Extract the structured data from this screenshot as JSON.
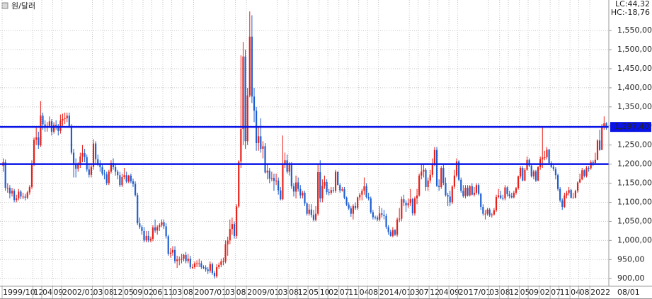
{
  "chart_data": {
    "type": "candlestick",
    "title": "원/달러",
    "lc_label": "LC:44,32",
    "hc_label": "HC:-18,76",
    "x_end_label": "08/01",
    "up_color": "#e8201a",
    "down_color": "#1e5fd0",
    "hline_color": "#0a14e6",
    "lc_color": "#e8201a",
    "hc_color": "#1e5fd0",
    "grid": true,
    "ylim": [
      880,
      1630
    ],
    "yticks": [
      {
        "value": 900,
        "label": "900,00"
      },
      {
        "value": 950,
        "label": "950,00"
      },
      {
        "value": 1000,
        "label": "1,000,00"
      },
      {
        "value": 1050,
        "label": "1,050,00"
      },
      {
        "value": 1100,
        "label": "1,100,00"
      },
      {
        "value": 1150,
        "label": "1,150,00"
      },
      {
        "value": 1200,
        "label": "1,200,00"
      },
      {
        "value": 1250,
        "label": "1,250,00"
      },
      {
        "value": 1300,
        "label": "1,300,00"
      },
      {
        "value": 1350,
        "label": "1,350,00"
      },
      {
        "value": 1400,
        "label": "1,400,00"
      },
      {
        "value": 1450,
        "label": "1,450,00"
      },
      {
        "value": 1500,
        "label": "1,500,00"
      },
      {
        "value": 1550,
        "label": "1,550,00"
      }
    ],
    "hlines": [
      1297.4,
      1200
    ],
    "hline_labels": [
      "1,297,40",
      null
    ],
    "categories": [
      "1999/10",
      null,
      null,
      null,
      null,
      null,
      null,
      null,
      null,
      null,
      null,
      null,
      null,
      null,
      "12",
      null,
      null,
      null,
      "04",
      null,
      null,
      null,
      null,
      "09",
      null,
      null,
      null,
      "2002/01",
      null,
      null,
      null,
      null,
      null,
      null,
      null,
      null,
      null,
      null,
      null,
      null,
      null,
      "03",
      null,
      null,
      null,
      null,
      "08",
      null,
      null,
      null,
      "12",
      null,
      null,
      null,
      null,
      "05",
      null,
      null,
      null,
      "09",
      null,
      null,
      null,
      null,
      "02",
      null,
      null,
      null,
      "06",
      null,
      null,
      null,
      null,
      "11",
      null,
      null,
      null,
      "03",
      null,
      null,
      null,
      null,
      "08",
      null,
      null,
      null,
      null,
      "2007/01",
      null,
      null,
      null,
      null,
      null,
      null,
      null,
      null,
      null,
      null,
      null,
      null,
      null,
      "03",
      null,
      null,
      null,
      null,
      "08",
      null,
      null,
      null,
      null,
      "2009/01",
      null,
      null,
      null,
      null,
      null,
      null,
      null,
      null,
      null,
      null,
      null,
      null,
      null,
      "03",
      null,
      null,
      null,
      null,
      "08",
      null,
      null,
      null,
      "12",
      null,
      null,
      null,
      null,
      "05",
      null,
      null,
      null,
      null,
      "10",
      null,
      null,
      null,
      "02",
      null,
      null,
      null,
      null,
      "07",
      null,
      null,
      null,
      "11",
      null,
      null,
      null,
      null,
      "04",
      null,
      null,
      null,
      "08",
      null,
      null,
      null,
      null,
      "2014/01",
      null,
      null,
      null,
      null,
      null,
      null,
      null,
      null,
      null,
      null,
      null,
      null,
      null,
      "03",
      null,
      null,
      null,
      "07",
      null,
      null,
      null,
      null,
      "12",
      null,
      null,
      null,
      "04",
      null,
      null,
      null,
      null,
      "09",
      null,
      null,
      null,
      "2017/01",
      null,
      null,
      null,
      null,
      null,
      null,
      null,
      null,
      null,
      null,
      null,
      null,
      null,
      "03",
      null,
      null,
      null,
      null,
      "08",
      null,
      null,
      null,
      "12",
      null,
      null,
      null,
      null,
      "05",
      null,
      null,
      null,
      "09",
      null,
      null,
      null,
      null,
      "02",
      null,
      null,
      null,
      null,
      "07",
      null,
      null,
      null,
      "11",
      null,
      null,
      null,
      null,
      "04",
      null,
      null,
      null,
      "08",
      null,
      null,
      null,
      null,
      "2022",
      null,
      null,
      null,
      null,
      null,
      null,
      null
    ],
    "open": [
      1195,
      1205,
      1138,
      1138,
      1123,
      1130,
      1106,
      1110,
      1128,
      1115,
      1115,
      1112,
      1126,
      1140,
      1200,
      1264,
      1270,
      1249,
      1327,
      1304,
      1296,
      1300,
      1312,
      1285,
      1303,
      1300,
      1287,
      1314,
      1318,
      1320,
      1327,
      1300,
      1230,
      1200,
      1188,
      1198,
      1220,
      1229,
      1218,
      1186,
      1172,
      1193,
      1254,
      1213,
      1202,
      1192,
      1175,
      1173,
      1150,
      1180,
      1203,
      1192,
      1180,
      1171,
      1145,
      1166,
      1171,
      1154,
      1170,
      1155,
      1148,
      1119,
      1045,
      1035,
      1025,
      1000,
      1012,
      1000,
      1004,
      1034,
      1026,
      1035,
      1040,
      1048,
      1037,
      1011,
      965,
      968,
      975,
      946,
      950,
      950,
      952,
      962,
      946,
      952,
      930,
      930,
      940,
      940,
      940,
      930,
      929,
      924,
      920,
      938,
      915,
      906,
      930,
      936,
      945,
      945,
      990,
      1000,
      1030,
      1043,
      1012,
      1089,
      1207,
      1292,
      1482,
      1260,
      1380,
      1534,
      1377,
      1340,
      1255,
      1273,
      1240,
      1247,
      1178,
      1183,
      1162,
      1164,
      1156,
      1157,
      1131,
      1108,
      1198,
      1210,
      1180,
      1198,
      1142,
      1128,
      1152,
      1135,
      1118,
      1125,
      1097,
      1070,
      1081,
      1067,
      1054,
      1070,
      1179,
      1110,
      1143,
      1153,
      1127,
      1125,
      1132,
      1130,
      1180,
      1145,
      1131,
      1134,
      1112,
      1094,
      1084,
      1070,
      1090,
      1085,
      1113,
      1120,
      1130,
      1142,
      1114,
      1110,
      1074,
      1061,
      1060,
      1055,
      1071,
      1067,
      1064,
      1035,
      1022,
      1012,
      1027,
      1015,
      1055,
      1057,
      1108,
      1099,
      1092,
      1098,
      1108,
      1071,
      1110,
      1118,
      1170,
      1180,
      1185,
      1140,
      1157,
      1172,
      1200,
      1237,
      1143,
      1140,
      1190,
      1151,
      1119,
      1115,
      1100,
      1141,
      1170,
      1207,
      1159,
      1130,
      1116,
      1138,
      1118,
      1142,
      1120,
      1125,
      1145,
      1122,
      1088,
      1070,
      1070,
      1081,
      1066,
      1068,
      1079,
      1114,
      1118,
      1111,
      1110,
      1139,
      1121,
      1116,
      1113,
      1125,
      1137,
      1168,
      1190,
      1157,
      1185,
      1211,
      1196,
      1168,
      1181,
      1157,
      1192,
      1213,
      1217,
      1218,
      1238,
      1203,
      1193,
      1187,
      1171,
      1135,
      1105,
      1088,
      1118,
      1124,
      1132,
      1112,
      1112,
      1130,
      1152,
      1160,
      1184,
      1169,
      1190,
      1189,
      1205,
      1203,
      1211,
      1262,
      1237,
      1298,
      1307
    ],
    "high": [
      1215,
      1212,
      1150,
      1145,
      1138,
      1135,
      1120,
      1135,
      1132,
      1125,
      1122,
      1130,
      1145,
      1210,
      1270,
      1295,
      1285,
      1365,
      1335,
      1315,
      1310,
      1325,
      1318,
      1310,
      1315,
      1305,
      1330,
      1332,
      1335,
      1335,
      1335,
      1305,
      1240,
      1215,
      1205,
      1230,
      1250,
      1240,
      1225,
      1200,
      1200,
      1265,
      1260,
      1225,
      1210,
      1200,
      1185,
      1180,
      1185,
      1210,
      1215,
      1200,
      1185,
      1180,
      1175,
      1190,
      1180,
      1172,
      1175,
      1162,
      1155,
      1125,
      1060,
      1040,
      1035,
      1025,
      1025,
      1010,
      1040,
      1055,
      1040,
      1045,
      1055,
      1055,
      1045,
      1015,
      980,
      985,
      985,
      960,
      958,
      965,
      965,
      970,
      965,
      960,
      938,
      945,
      948,
      952,
      947,
      935,
      935,
      930,
      945,
      942,
      920,
      938,
      942,
      952,
      955,
      1000,
      1010,
      1055,
      1060,
      1050,
      1095,
      1210,
      1485,
      1520,
      1500,
      1400,
      1600,
      1590,
      1400,
      1350,
      1300,
      1320,
      1260,
      1255,
      1200,
      1190,
      1180,
      1175,
      1175,
      1165,
      1140,
      1275,
      1230,
      1225,
      1205,
      1205,
      1150,
      1170,
      1165,
      1145,
      1130,
      1130,
      1100,
      1095,
      1095,
      1080,
      1090,
      1200,
      1210,
      1160,
      1170,
      1160,
      1135,
      1140,
      1140,
      1185,
      1180,
      1150,
      1140,
      1140,
      1115,
      1100,
      1090,
      1095,
      1100,
      1115,
      1125,
      1135,
      1165,
      1150,
      1125,
      1115,
      1080,
      1065,
      1065,
      1090,
      1085,
      1080,
      1070,
      1040,
      1028,
      1035,
      1030,
      1060,
      1085,
      1115,
      1120,
      1105,
      1110,
      1135,
      1112,
      1115,
      1135,
      1175,
      1200,
      1200,
      1190,
      1165,
      1185,
      1215,
      1245,
      1245,
      1160,
      1195,
      1200,
      1165,
      1125,
      1130,
      1145,
      1185,
      1215,
      1210,
      1165,
      1145,
      1145,
      1145,
      1145,
      1150,
      1140,
      1150,
      1150,
      1125,
      1095,
      1080,
      1085,
      1085,
      1072,
      1085,
      1120,
      1135,
      1130,
      1120,
      1145,
      1142,
      1130,
      1125,
      1130,
      1140,
      1170,
      1195,
      1195,
      1190,
      1220,
      1215,
      1200,
      1185,
      1185,
      1195,
      1220,
      1296,
      1235,
      1245,
      1240,
      1208,
      1198,
      1192,
      1175,
      1140,
      1110,
      1125,
      1130,
      1140,
      1135,
      1125,
      1133,
      1155,
      1175,
      1190,
      1186,
      1195,
      1195,
      1210,
      1210,
      1230,
      1265,
      1290,
      1305,
      1325,
      1310
    ],
    "low": [
      1180,
      1130,
      1125,
      1110,
      1115,
      1100,
      1100,
      1105,
      1108,
      1108,
      1105,
      1108,
      1120,
      1135,
      1195,
      1250,
      1240,
      1245,
      1290,
      1285,
      1285,
      1295,
      1275,
      1280,
      1290,
      1275,
      1280,
      1300,
      1305,
      1310,
      1295,
      1225,
      1165,
      1165,
      1180,
      1190,
      1205,
      1205,
      1180,
      1165,
      1165,
      1185,
      1200,
      1195,
      1180,
      1170,
      1160,
      1145,
      1145,
      1175,
      1185,
      1170,
      1160,
      1140,
      1140,
      1160,
      1150,
      1150,
      1150,
      1140,
      1115,
      1040,
      1030,
      1015,
      995,
      995,
      995,
      995,
      998,
      1020,
      1015,
      1025,
      1035,
      1030,
      1005,
      960,
      955,
      960,
      940,
      928,
      935,
      940,
      945,
      940,
      940,
      925,
      925,
      925,
      930,
      930,
      925,
      925,
      918,
      912,
      915,
      910,
      900,
      902,
      925,
      930,
      935,
      940,
      960,
      990,
      1015,
      1005,
      1005,
      1085,
      1190,
      1250,
      1240,
      1250,
      1375,
      1360,
      1310,
      1235,
      1235,
      1230,
      1215,
      1175,
      1160,
      1150,
      1155,
      1130,
      1145,
      1120,
      1105,
      1105,
      1190,
      1175,
      1170,
      1135,
      1115,
      1110,
      1128,
      1110,
      1110,
      1090,
      1065,
      1065,
      1060,
      1050,
      1050,
      1065,
      1100,
      1100,
      1135,
      1120,
      1118,
      1120,
      1125,
      1125,
      1145,
      1125,
      1128,
      1108,
      1090,
      1080,
      1062,
      1055,
      1080,
      1080,
      1105,
      1105,
      1120,
      1110,
      1105,
      1070,
      1055,
      1055,
      1050,
      1050,
      1060,
      1055,
      1030,
      1015,
      1010,
      1008,
      1012,
      1010,
      1048,
      1050,
      1090,
      1075,
      1085,
      1090,
      1065,
      1065,
      1095,
      1115,
      1160,
      1165,
      1130,
      1130,
      1150,
      1165,
      1195,
      1140,
      1130,
      1135,
      1145,
      1115,
      1090,
      1090,
      1095,
      1135,
      1165,
      1155,
      1125,
      1112,
      1110,
      1115,
      1115,
      1118,
      1115,
      1120,
      1118,
      1080,
      1065,
      1055,
      1065,
      1062,
      1060,
      1065,
      1075,
      1110,
      1108,
      1105,
      1105,
      1115,
      1110,
      1110,
      1110,
      1120,
      1133,
      1162,
      1155,
      1155,
      1183,
      1192,
      1165,
      1160,
      1153,
      1155,
      1185,
      1190,
      1210,
      1212,
      1198,
      1190,
      1182,
      1160,
      1130,
      1100,
      1080,
      1085,
      1110,
      1118,
      1110,
      1110,
      1110,
      1125,
      1150,
      1158,
      1165,
      1165,
      1180,
      1185,
      1195,
      1198,
      1210,
      1235,
      1237,
      1290,
      1290
    ],
    "close": [
      1205,
      1138,
      1138,
      1123,
      1130,
      1106,
      1110,
      1128,
      1115,
      1115,
      1112,
      1126,
      1140,
      1200,
      1264,
      1270,
      1249,
      1327,
      1304,
      1296,
      1300,
      1312,
      1285,
      1303,
      1300,
      1287,
      1314,
      1318,
      1320,
      1327,
      1300,
      1230,
      1200,
      1188,
      1198,
      1220,
      1229,
      1218,
      1186,
      1172,
      1193,
      1254,
      1213,
      1202,
      1192,
      1175,
      1173,
      1150,
      1180,
      1203,
      1192,
      1180,
      1171,
      1145,
      1166,
      1171,
      1154,
      1170,
      1155,
      1148,
      1119,
      1045,
      1035,
      1025,
      1000,
      1012,
      1000,
      1004,
      1034,
      1026,
      1035,
      1040,
      1048,
      1037,
      1011,
      965,
      968,
      975,
      946,
      950,
      950,
      952,
      962,
      946,
      952,
      930,
      930,
      940,
      940,
      940,
      930,
      929,
      924,
      920,
      938,
      915,
      906,
      930,
      936,
      945,
      945,
      990,
      1000,
      1030,
      1043,
      1012,
      1089,
      1207,
      1292,
      1482,
      1260,
      1380,
      1534,
      1377,
      1340,
      1255,
      1273,
      1240,
      1247,
      1178,
      1183,
      1162,
      1164,
      1156,
      1157,
      1131,
      1108,
      1198,
      1210,
      1180,
      1198,
      1142,
      1128,
      1152,
      1135,
      1118,
      1125,
      1097,
      1070,
      1081,
      1067,
      1054,
      1070,
      1179,
      1110,
      1143,
      1153,
      1127,
      1125,
      1132,
      1130,
      1180,
      1145,
      1131,
      1134,
      1112,
      1094,
      1084,
      1070,
      1090,
      1085,
      1113,
      1120,
      1130,
      1142,
      1114,
      1110,
      1074,
      1061,
      1060,
      1055,
      1071,
      1067,
      1064,
      1035,
      1022,
      1012,
      1027,
      1015,
      1055,
      1057,
      1108,
      1099,
      1092,
      1098,
      1108,
      1071,
      1110,
      1118,
      1170,
      1180,
      1185,
      1140,
      1157,
      1172,
      1200,
      1237,
      1143,
      1140,
      1190,
      1151,
      1119,
      1115,
      1100,
      1141,
      1170,
      1207,
      1159,
      1130,
      1116,
      1138,
      1118,
      1142,
      1120,
      1125,
      1145,
      1122,
      1088,
      1070,
      1070,
      1081,
      1066,
      1068,
      1079,
      1114,
      1118,
      1111,
      1110,
      1139,
      1121,
      1116,
      1113,
      1125,
      1137,
      1168,
      1190,
      1157,
      1185,
      1211,
      1196,
      1168,
      1181,
      1157,
      1192,
      1213,
      1217,
      1218,
      1238,
      1203,
      1193,
      1187,
      1171,
      1135,
      1105,
      1088,
      1118,
      1124,
      1132,
      1112,
      1112,
      1130,
      1152,
      1160,
      1184,
      1169,
      1190,
      1189,
      1205,
      1203,
      1211,
      1262,
      1237,
      1298,
      1307,
      1297.4
    ]
  }
}
